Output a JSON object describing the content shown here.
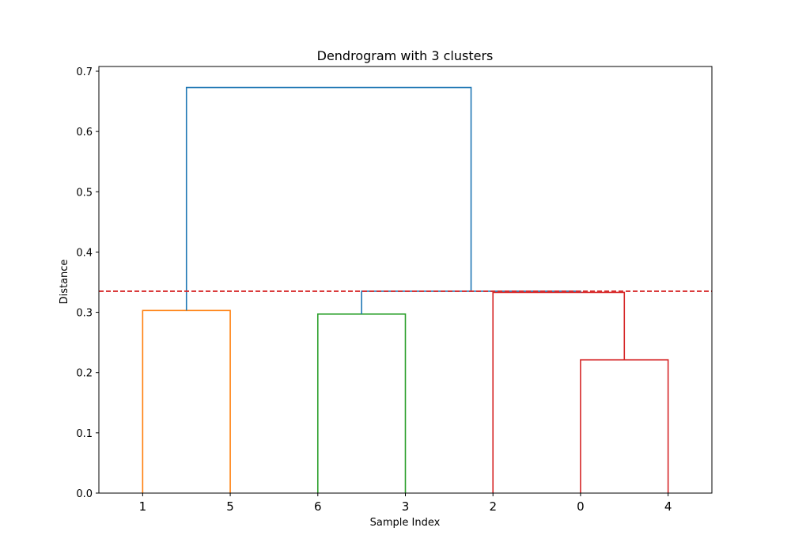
{
  "chart_data": {
    "type": "dendrogram",
    "title": "Dendrogram with 3 clusters",
    "xlabel": "Sample Index",
    "ylabel": "Distance",
    "ylim": [
      0,
      0.7
    ],
    "yticks": [
      "0.0",
      "0.1",
      "0.2",
      "0.3",
      "0.4",
      "0.5",
      "0.6",
      "0.7"
    ],
    "leaf_order": [
      "1",
      "5",
      "6",
      "3",
      "2",
      "0",
      "4"
    ],
    "threshold": {
      "value": 0.335,
      "color": "#d62728",
      "style": "dashed"
    },
    "merges": [
      {
        "left": 0,
        "right": 1,
        "height": 0.303,
        "color": "#ff7f0e",
        "left_base": 0,
        "right_base": 0
      },
      {
        "left": 2,
        "right": 3,
        "height": 0.297,
        "color": "#2ca02c",
        "left_base": 0,
        "right_base": 0
      },
      {
        "left": 5,
        "right": 6,
        "height": 0.221,
        "color": "#d62728",
        "left_base": 0,
        "right_base": 0
      },
      {
        "left": 4,
        "right": 5.5,
        "height": 0.333,
        "color": "#d62728",
        "left_base": 0,
        "right_base": 0.221
      },
      {
        "left": 2.5,
        "right": 5,
        "height": 0.335,
        "color": "#1f77b4",
        "left_base": 0.297,
        "right_base": 0.333
      },
      {
        "left": 0.5,
        "right": 3.75,
        "height": 0.673,
        "color": "#1f77b4",
        "left_base": 0.303,
        "right_base": 0.335
      }
    ]
  }
}
